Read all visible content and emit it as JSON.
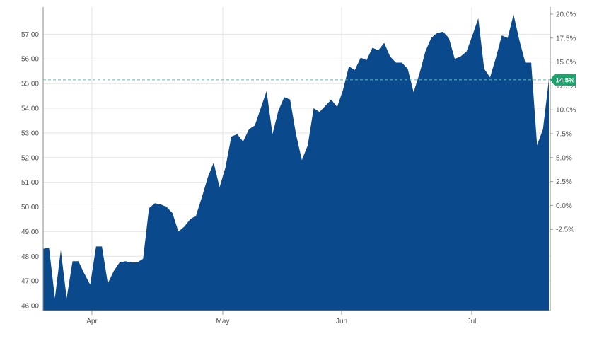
{
  "chart_data": {
    "type": "area",
    "title": "",
    "xlabel": "",
    "ylabel": "",
    "x_tick_labels": [
      "Apr",
      "May",
      "Jun",
      "Jul"
    ],
    "left_axis": {
      "ticks": [
        "46.00",
        "47.00",
        "48.00",
        "49.00",
        "50.00",
        "51.00",
        "52.00",
        "53.00",
        "54.00",
        "55.00",
        "56.00",
        "57.00"
      ],
      "ylim": [
        45.8,
        58.1
      ]
    },
    "right_axis": {
      "ticks": [
        "-2.5%",
        "0.0%",
        "2.5%",
        "5.0%",
        "7.5%",
        "10.0%",
        "12.5%",
        "15.0%",
        "17.5%",
        "20.0%"
      ]
    },
    "current_value_label": "14.5%",
    "reference_line_value": 55.15,
    "series": [
      {
        "values": [
          48.3,
          48.35,
          46.3,
          48.25,
          46.3,
          47.8,
          47.8,
          47.3,
          46.85,
          48.4,
          48.4,
          46.9,
          47.4,
          47.75,
          47.8,
          47.75,
          47.75,
          47.9,
          49.95,
          50.15,
          50.1,
          50.0,
          49.75,
          49.0,
          49.2,
          49.5,
          49.65,
          50.4,
          51.2,
          51.8,
          50.8,
          51.6,
          52.85,
          52.95,
          52.65,
          53.15,
          53.3,
          54.0,
          54.7,
          52.95,
          53.9,
          54.45,
          54.35,
          52.95,
          51.9,
          52.5,
          54.0,
          53.85,
          54.1,
          54.35,
          54.05,
          54.75,
          55.7,
          55.55,
          56.05,
          55.95,
          56.45,
          56.35,
          56.65,
          56.1,
          55.85,
          55.85,
          55.6,
          54.65,
          55.4,
          56.3,
          56.85,
          57.05,
          57.1,
          56.85,
          56.0,
          56.1,
          56.3,
          56.95,
          57.65,
          55.6,
          55.25,
          56.05,
          56.95,
          56.85,
          57.8,
          56.75,
          55.85,
          55.85,
          52.5,
          53.15,
          55.15
        ]
      }
    ],
    "colors": {
      "area_fill": "#0a4a8c",
      "reference_line": "#5bbfb0",
      "value_badge": "#1aa36a",
      "grid": "#e4e4e4",
      "axis_text": "#555555"
    }
  }
}
